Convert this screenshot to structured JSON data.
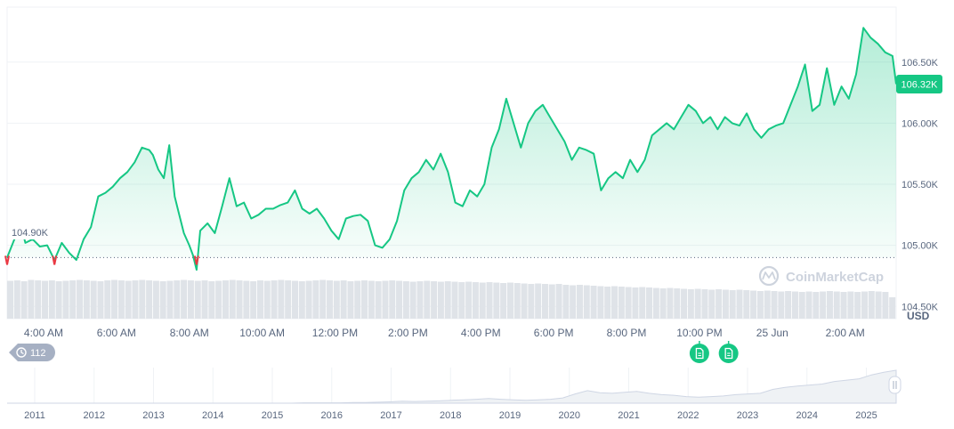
{
  "colors": {
    "line": "#16c784",
    "line_below": "#ea3943",
    "area_top": "#16c784",
    "grid": "#eff2f5",
    "axis_text": "#58667e",
    "volume": "#dfe3e8",
    "current_badge_bg": "#16c784",
    "baseline_badge_bg": "#ffffff",
    "nav_area": "#eff2f5",
    "nav_line": "#cfd6e4"
  },
  "chart_data": {
    "type": "line",
    "currency_label": "USD",
    "watermark": "CoinMarketCap",
    "current_value_label": "106.32K",
    "baseline_label": "104.90K",
    "baseline_value": 104.9,
    "ylim": [
      104.4,
      106.95
    ],
    "y_ticks": [
      {
        "value": 104.5,
        "label": "104.50K"
      },
      {
        "value": 105.0,
        "label": "105.00K"
      },
      {
        "value": 105.5,
        "label": "105.50K"
      },
      {
        "value": 106.0,
        "label": "106.00K"
      },
      {
        "value": 106.5,
        "label": "106.50K"
      }
    ],
    "xlim": [
      3.0,
      27.4
    ],
    "x_ticks": [
      {
        "value": 4,
        "label": "4:00 AM"
      },
      {
        "value": 6,
        "label": "6:00 AM"
      },
      {
        "value": 8,
        "label": "8:00 AM"
      },
      {
        "value": 10,
        "label": "10:00 AM"
      },
      {
        "value": 12,
        "label": "12:00 PM"
      },
      {
        "value": 14,
        "label": "2:00 PM"
      },
      {
        "value": 16,
        "label": "4:00 PM"
      },
      {
        "value": 18,
        "label": "6:00 PM"
      },
      {
        "value": 20,
        "label": "8:00 PM"
      },
      {
        "value": 22,
        "label": "10:00 PM"
      },
      {
        "value": 24,
        "label": "25 Jun"
      },
      {
        "value": 26,
        "label": "2:00 AM"
      }
    ],
    "series": [
      {
        "x": [
          3.0,
          3.2,
          3.4,
          3.5,
          3.7,
          3.9,
          4.1,
          4.3,
          4.5,
          4.7,
          4.9,
          5.1,
          5.3,
          5.5,
          5.7,
          5.9,
          6.1,
          6.3,
          6.5,
          6.7,
          6.9,
          7.0,
          7.15,
          7.3,
          7.45,
          7.6,
          7.7,
          7.85,
          8.0,
          8.1,
          8.2,
          8.3,
          8.5,
          8.7,
          8.9,
          9.1,
          9.3,
          9.5,
          9.7,
          9.9,
          10.1,
          10.3,
          10.5,
          10.7,
          10.9,
          11.1,
          11.3,
          11.5,
          11.7,
          11.9,
          12.1,
          12.3,
          12.5,
          12.7,
          12.9,
          13.1,
          13.3,
          13.5,
          13.7,
          13.9,
          14.1,
          14.3,
          14.5,
          14.7,
          14.9,
          15.1,
          15.3,
          15.5,
          15.7,
          15.9,
          16.1,
          16.3,
          16.5,
          16.7,
          16.9,
          17.1,
          17.3,
          17.5,
          17.7,
          17.9,
          18.1,
          18.3,
          18.5,
          18.7,
          18.9,
          19.1,
          19.3,
          19.5,
          19.7,
          19.9,
          20.1,
          20.3,
          20.5,
          20.7,
          20.9,
          21.1,
          21.3,
          21.5,
          21.7,
          21.9,
          22.1,
          22.3,
          22.5,
          22.7,
          22.9,
          23.1,
          23.3,
          23.5,
          23.7,
          23.9,
          24.1,
          24.3,
          24.5,
          24.7,
          24.9,
          25.1,
          25.3,
          25.5,
          25.7,
          25.9,
          26.1,
          26.3,
          26.5,
          26.7,
          26.9,
          27.1,
          27.3,
          27.4
        ],
        "values": [
          104.9,
          105.05,
          105.14,
          105.02,
          105.05,
          104.99,
          105.0,
          104.88,
          105.02,
          104.94,
          104.88,
          105.05,
          105.15,
          105.4,
          105.43,
          105.48,
          105.55,
          105.6,
          105.68,
          105.8,
          105.78,
          105.74,
          105.62,
          105.55,
          105.82,
          105.4,
          105.28,
          105.1,
          105.0,
          104.92,
          104.8,
          105.12,
          105.18,
          105.1,
          105.32,
          105.55,
          105.32,
          105.35,
          105.22,
          105.25,
          105.3,
          105.3,
          105.33,
          105.35,
          105.45,
          105.3,
          105.26,
          105.3,
          105.22,
          105.12,
          105.05,
          105.22,
          105.24,
          105.25,
          105.2,
          105.0,
          104.98,
          105.05,
          105.2,
          105.45,
          105.55,
          105.6,
          105.7,
          105.62,
          105.75,
          105.6,
          105.35,
          105.32,
          105.45,
          105.4,
          105.5,
          105.8,
          105.95,
          106.2,
          106.0,
          105.8,
          106.0,
          106.1,
          106.15,
          106.05,
          105.95,
          105.85,
          105.7,
          105.8,
          105.78,
          105.75,
          105.45,
          105.55,
          105.6,
          105.55,
          105.7,
          105.6,
          105.7,
          105.9,
          105.95,
          106.0,
          105.95,
          106.05,
          106.15,
          106.1,
          106.0,
          106.05,
          105.95,
          106.05,
          106.0,
          105.98,
          106.08,
          105.95,
          105.88,
          105.95,
          105.98,
          106.0,
          106.15,
          106.3,
          106.48,
          106.1,
          106.15,
          106.45,
          106.15,
          106.3,
          106.2,
          106.4,
          106.78,
          106.7,
          106.65,
          106.58,
          106.55,
          106.32
        ],
        "below_baseline_points": [
          3.0,
          4.3,
          8.2
        ]
      }
    ],
    "volume": [
      85,
      86,
      84,
      87,
      86,
      85,
      86,
      84,
      85,
      86,
      87,
      86,
      85,
      84,
      86,
      87,
      86,
      85,
      86,
      87,
      86,
      85,
      84,
      85,
      86,
      87,
      86,
      85,
      86,
      84,
      85,
      86,
      87,
      86,
      85,
      84,
      86,
      85,
      86,
      87,
      86,
      85,
      84,
      85,
      86,
      87,
      86,
      85,
      86,
      84,
      85,
      86,
      85,
      84,
      85,
      86,
      85,
      84,
      83,
      84,
      85,
      84,
      83,
      84,
      83,
      82,
      83,
      82,
      81,
      82,
      81,
      80,
      81,
      80,
      79,
      78,
      79,
      78,
      77,
      78,
      76,
      75,
      76,
      75,
      74,
      73,
      72,
      73,
      72,
      71,
      70,
      71,
      70,
      69,
      68,
      69,
      68,
      67,
      66,
      67,
      66,
      65,
      66,
      65,
      64,
      65,
      64,
      63,
      62,
      63,
      62,
      61,
      62,
      61,
      60,
      61,
      60,
      61,
      62,
      61,
      60,
      61,
      60,
      61,
      62,
      61,
      60,
      48
    ]
  },
  "history_badge": {
    "icon": "history-icon",
    "count": "112"
  },
  "event_markers": [
    {
      "icon": "document-icon",
      "x": 22.0
    },
    {
      "icon": "document-icon",
      "x": 22.8
    }
  ],
  "navigator": {
    "year_ticks": [
      "2011",
      "2012",
      "2013",
      "2014",
      "2015",
      "2016",
      "2017",
      "2018",
      "2019",
      "2020",
      "2021",
      "2022",
      "2023",
      "2024",
      "2025"
    ],
    "profile": [
      0,
      0,
      0,
      0,
      0,
      0,
      0,
      0,
      0,
      0,
      0,
      0,
      0,
      0,
      0,
      0,
      0,
      0,
      0,
      0,
      0,
      0,
      0,
      0,
      0.01,
      0.01,
      0.01,
      0.01,
      0.02,
      0.02,
      0.03,
      0.04,
      0.06,
      0.05,
      0.06,
      0.07,
      0.09,
      0.1,
      0.12,
      0.14,
      0.12,
      0.1,
      0.09,
      0.1,
      0.12,
      0.16,
      0.28,
      0.38,
      0.32,
      0.3,
      0.33,
      0.36,
      0.3,
      0.26,
      0.24,
      0.2,
      0.18,
      0.2,
      0.22,
      0.26,
      0.28,
      0.3,
      0.42,
      0.48,
      0.52,
      0.55,
      0.58,
      0.66,
      0.7,
      0.74,
      0.86,
      0.94,
      1.0
    ]
  }
}
